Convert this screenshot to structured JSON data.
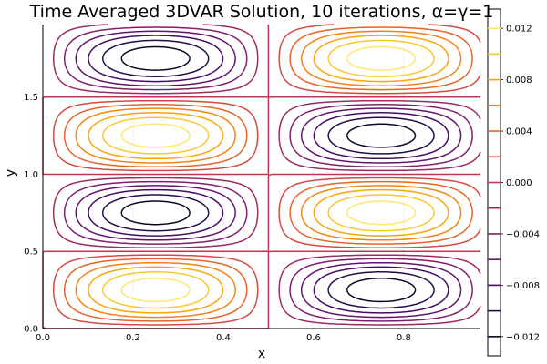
{
  "chart_data": {
    "type": "contour",
    "title": "Time Averaged 3DVAR Solution, 10 iterations, α=γ=1",
    "xlabel": "x",
    "ylabel": "y",
    "xlim": [
      0.0,
      0.97
    ],
    "ylim": [
      0.0,
      1.97
    ],
    "x_ticks": [
      "0.0",
      "0.2",
      "0.4",
      "0.6",
      "0.8"
    ],
    "y_ticks": [
      "0.0",
      "0.5",
      "1.0",
      "1.5"
    ],
    "grid": true,
    "field": {
      "description_formula": "A·sin(2πx)·sin(2πy) on a 2×4 cell grid",
      "amplitude": 0.0135
    },
    "levels": [
      -0.012,
      -0.01,
      -0.008,
      -0.006,
      -0.004,
      -0.002,
      0.0,
      0.002,
      0.004,
      0.006,
      0.008,
      0.01,
      0.012
    ],
    "colorbar": {
      "tick_values": [
        0.012,
        0.008,
        0.004,
        0.0,
        -0.004,
        -0.008,
        -0.012
      ],
      "tick_labels": [
        "0.012",
        "0.008",
        "0.004",
        "0.000",
        "−0.004",
        "−0.008",
        "−0.012"
      ],
      "range": [
        -0.0135,
        0.0135
      ]
    },
    "colormap": {
      "name": "inferno",
      "stops": [
        "#000004",
        "#1b0c41",
        "#4a0c6b",
        "#781c6d",
        "#a52c60",
        "#cf4446",
        "#ed6925",
        "#fb9b06",
        "#f7d13d",
        "#fcffa4"
      ]
    }
  }
}
